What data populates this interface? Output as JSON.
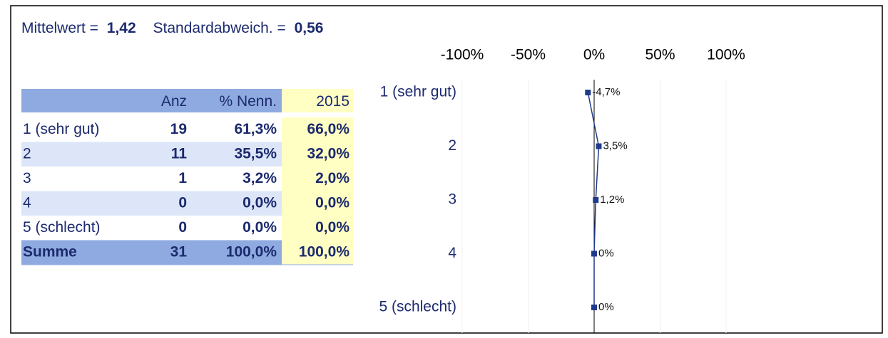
{
  "header": {
    "mean_label": "Mittelwert =",
    "mean_value": "1,42",
    "sd_label": "Standardabweich. =",
    "sd_value": "0,56"
  },
  "table": {
    "columns": [
      "Anz",
      "% Nenn.",
      "2015"
    ],
    "rows": [
      [
        "1 (sehr gut)",
        "19",
        "61,3%",
        "66,0%"
      ],
      [
        "2",
        "11",
        "35,5%",
        "32,0%"
      ],
      [
        "3",
        "1",
        "3,2%",
        "2,0%"
      ],
      [
        "4",
        "0",
        "0,0%",
        "0,0%"
      ],
      [
        "5 (schlecht)",
        "0",
        "0,0%",
        "0,0%"
      ],
      [
        "Summe",
        "31",
        "100,0%",
        "100,0%"
      ]
    ]
  },
  "chart_data": {
    "type": "line",
    "categories": [
      "1 (sehr gut)",
      "2",
      "3",
      "4",
      "5 (schlecht)"
    ],
    "values": [
      -4.7,
      3.5,
      1.2,
      0,
      0
    ],
    "value_labels": [
      "-4,7%",
      "3,5%",
      "1,2%",
      "0%",
      "0%"
    ],
    "color": "#1f3a8a",
    "xlim": [
      -100,
      100
    ],
    "xticks": [
      {
        "value": -100,
        "label": "-100%"
      },
      {
        "value": -50,
        "label": "-50%"
      },
      {
        "value": 0,
        "label": "0%"
      },
      {
        "value": 50,
        "label": "50%"
      },
      {
        "value": 100,
        "label": "100%"
      }
    ],
    "grid": true
  }
}
